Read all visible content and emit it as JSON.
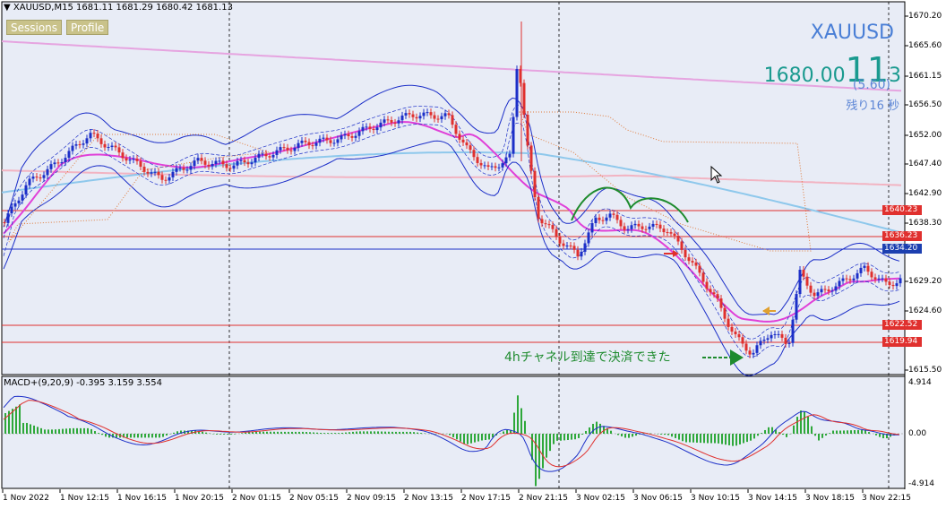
{
  "header": {
    "symbol_tf": "XAUUSD,M15",
    "ohlc": "1681.11 1681.29 1680.42 1681.13"
  },
  "buttons": [
    {
      "label": "Sessions"
    },
    {
      "label": "Profile"
    }
  ],
  "quote": {
    "symbol": "XAUUSD",
    "bid_small": "1680.00",
    "bid_big": "11",
    "bid_last": "3",
    "change": "(5.60)",
    "remaining": "残り16 秒"
  },
  "annotation": "4hチャネル到達で決済できた",
  "price_axis": [
    "1670.20",
    "1665.60",
    "1661.15",
    "1656.50",
    "1652.00",
    "1647.40",
    "1642.90",
    "1638.30",
    "1629.20",
    "1624.60",
    "1615.50"
  ],
  "price_tags": [
    {
      "label": "1640.23",
      "color": "#e0302e"
    },
    {
      "label": "1636.23",
      "color": "#e0302e"
    },
    {
      "label": "1634.20",
      "color": "#1c3fb0"
    },
    {
      "label": "1622.52",
      "color": "#e0302e"
    },
    {
      "label": "1619.94",
      "color": "#e0302e"
    }
  ],
  "macd": {
    "header": "MACD+(9,20,9) -0.395 3.159 3.554",
    "axis": [
      "4.914",
      "0.00",
      "-4.914"
    ]
  },
  "time_axis": [
    "1 Nov 2022",
    "1 Nov 12:15",
    "1 Nov 16:15",
    "1 Nov 20:15",
    "2 Nov 01:15",
    "2 Nov 05:15",
    "2 Nov 09:15",
    "2 Nov 13:15",
    "2 Nov 17:15",
    "2 Nov 21:15",
    "3 Nov 02:15",
    "3 Nov 06:15",
    "3 Nov 10:15",
    "3 Nov 14:15",
    "3 Nov 18:15",
    "3 Nov 22:15"
  ],
  "colors": {
    "background": "#e8ecf6",
    "bull": "#1c2fc8",
    "bear": "#e0302e",
    "ma_magenta": "#e040d8",
    "ma_skyblue": "#8ec8ec",
    "ma_pink": "#f2b4c2",
    "ma_violet": "#e6a4e0",
    "kumo": "#e07a3a",
    "annotation_green": "#1e8b2e"
  }
}
